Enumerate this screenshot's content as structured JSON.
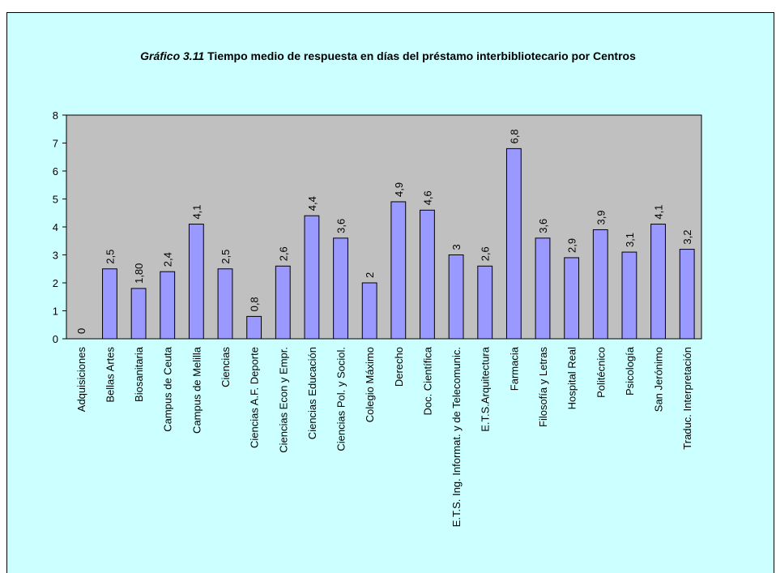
{
  "chart_data": {
    "type": "bar",
    "title_prefix": "Gráfico 3.11",
    "title": "Tiempo medio de respuesta en días del préstamo interbibliotecario por Centros",
    "categories": [
      "Adquisiciones",
      "Bellas Artes",
      "Biosanitaria",
      "Campus de Ceuta",
      "Campus de Melilla",
      "Ciencias",
      "Ciencias A.F. Deporte",
      "Ciencias Econ y Empr.",
      "Ciencias Educación",
      "Ciencias Pol. y Sociol.",
      "Colegio Máximo",
      "Derecho",
      "Doc. Científica",
      "E.T.S. Ing. Informat. y de Telecomunic.",
      "E.T.S.Arquitectura",
      "Farmacia",
      "Filosofía y Letras",
      "Hospital Real",
      "Politécnico",
      "Psicología",
      "San Jerónimo",
      "Traduc. Interpretación"
    ],
    "values": [
      0,
      2.5,
      1.8,
      2.4,
      4.1,
      2.5,
      0.8,
      2.6,
      4.4,
      3.6,
      2,
      4.9,
      4.6,
      3,
      2.6,
      6.8,
      3.6,
      2.9,
      3.9,
      3.1,
      4.1,
      3.2
    ],
    "value_labels": [
      "0",
      "2,5",
      "1,80",
      "2,4",
      "4,1",
      "2,5",
      "0,8",
      "2,6",
      "4,4",
      "3,6",
      "2",
      "4,9",
      "4,6",
      "3",
      "2,6",
      "6,8",
      "3,6",
      "2,9",
      "3,9",
      "3,1",
      "4,1",
      "3,2"
    ],
    "color": "#9999ff",
    "plot_background": "#c0c0c0",
    "background": "#ccffff",
    "ylim": [
      0,
      8
    ],
    "yticks": [
      0,
      1,
      2,
      3,
      4,
      5,
      6,
      7,
      8
    ],
    "grid": false
  }
}
